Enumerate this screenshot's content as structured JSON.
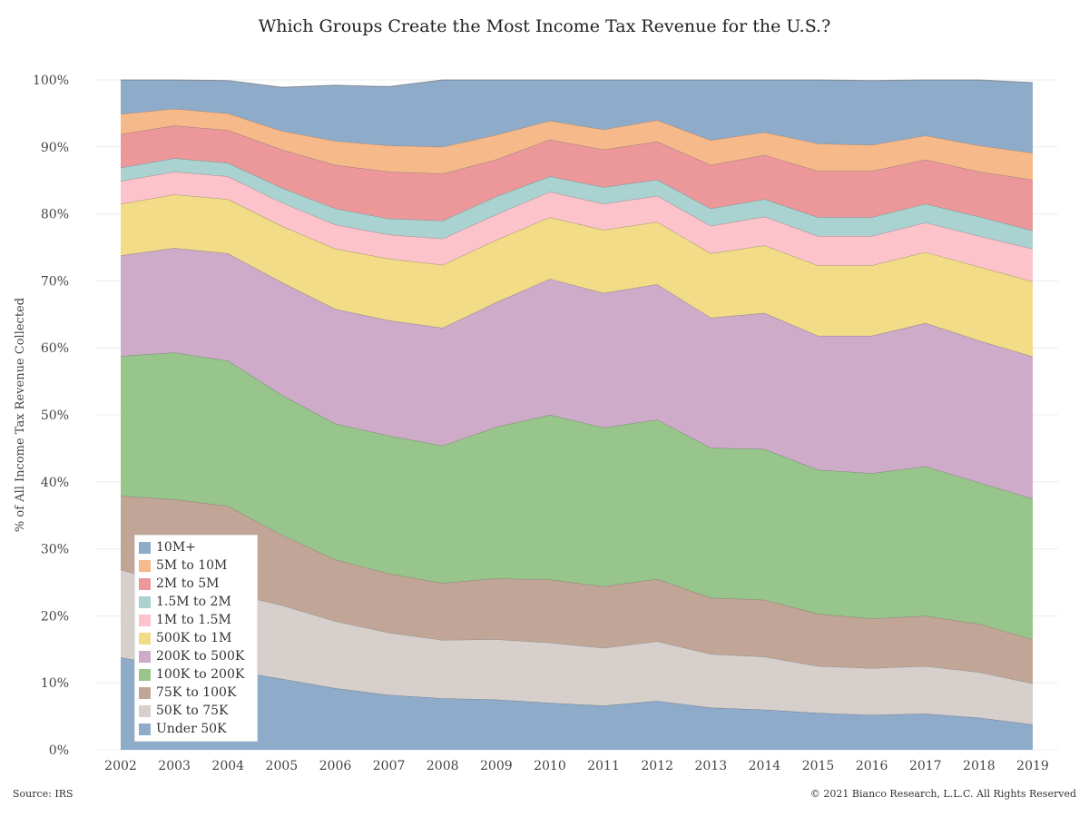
{
  "title": "Which Groups Create the Most Income Tax Revenue for the U.S.?",
  "source": "Source: IRS",
  "copyright": "© 2021 Bianco Research, L.L.C. All Rights Reserved",
  "chart_data": {
    "type": "area",
    "stacked": true,
    "title": "Which Groups Create the Most Income Tax Revenue for the U.S.?",
    "xlabel": "",
    "ylabel": "% of All Income Tax Revenue Collected",
    "x": [
      "2002",
      "2003",
      "2004",
      "2005",
      "2006",
      "2007",
      "2008",
      "2009",
      "2010",
      "2011",
      "2012",
      "2013",
      "2014",
      "2015",
      "2016",
      "2017",
      "2018",
      "2019"
    ],
    "ylim": [
      0,
      100
    ],
    "yticks": [
      "0%",
      "10%",
      "20%",
      "30%",
      "40%",
      "50%",
      "60%",
      "70%",
      "80%",
      "90%",
      "100%"
    ],
    "grid": true,
    "legend_position": "bottom-left",
    "series": [
      {
        "name": "Under 50K",
        "color": "#8fabca",
        "values": [
          13.8,
          12.4,
          11.9,
          10.6,
          9.2,
          8.2,
          7.7,
          7.5,
          7.0,
          6.6,
          7.3,
          6.3,
          6.0,
          5.5,
          5.2,
          5.4,
          4.8,
          3.8
        ]
      },
      {
        "name": "50K to 75K",
        "color": "#d6cfcc",
        "values": [
          13.1,
          12.3,
          11.6,
          11.0,
          10.0,
          9.3,
          8.7,
          9.0,
          9.0,
          8.6,
          8.9,
          8.0,
          7.9,
          7.0,
          7.0,
          7.1,
          6.8,
          6.1
        ]
      },
      {
        "name": "75K to 100K",
        "color": "#c1a697",
        "values": [
          11.0,
          12.7,
          12.9,
          10.5,
          9.2,
          8.8,
          8.5,
          9.1,
          9.4,
          9.2,
          9.3,
          8.4,
          8.5,
          7.8,
          7.4,
          7.5,
          7.2,
          6.6
        ]
      },
      {
        "name": "100K to 200K",
        "color": "#98c58b",
        "values": [
          20.9,
          21.9,
          21.7,
          20.9,
          20.3,
          20.6,
          20.5,
          22.6,
          24.6,
          23.7,
          23.8,
          22.4,
          22.5,
          21.5,
          21.7,
          22.3,
          21.1,
          21.0
        ]
      },
      {
        "name": "200K to 500K",
        "color": "#ceabc9",
        "values": [
          15.0,
          15.6,
          16.0,
          16.8,
          17.1,
          17.2,
          17.6,
          18.6,
          20.3,
          20.1,
          20.2,
          19.4,
          20.3,
          20.0,
          20.5,
          21.4,
          21.2,
          21.2
        ]
      },
      {
        "name": "500K to 1M",
        "color": "#f2dc87",
        "values": [
          7.7,
          8.0,
          8.1,
          8.4,
          9.0,
          9.2,
          9.4,
          9.3,
          9.2,
          9.4,
          9.3,
          9.6,
          10.1,
          10.5,
          10.5,
          10.6,
          11.0,
          11.2
        ]
      },
      {
        "name": "1M to 1.5M",
        "color": "#fdc3ca",
        "values": [
          3.4,
          3.4,
          3.4,
          3.5,
          3.6,
          3.6,
          3.9,
          3.8,
          3.8,
          3.9,
          3.9,
          4.1,
          4.3,
          4.4,
          4.4,
          4.4,
          4.6,
          4.9
        ]
      },
      {
        "name": "1.5M to 2M",
        "color": "#a9d2d0",
        "values": [
          2.0,
          2.0,
          2.0,
          2.2,
          2.4,
          2.4,
          2.7,
          2.7,
          2.3,
          2.5,
          2.4,
          2.6,
          2.6,
          2.8,
          2.8,
          2.8,
          2.9,
          2.7
        ]
      },
      {
        "name": "2M to 5M",
        "color": "#ec989a",
        "values": [
          5.0,
          4.9,
          4.9,
          5.7,
          6.5,
          7.0,
          7.0,
          5.5,
          5.5,
          5.6,
          5.7,
          6.5,
          6.6,
          6.9,
          6.9,
          6.6,
          6.7,
          7.6
        ]
      },
      {
        "name": "5M to 10M",
        "color": "#f6b98a",
        "values": [
          3.0,
          2.5,
          2.5,
          2.8,
          3.6,
          3.9,
          4.0,
          3.7,
          2.8,
          3.0,
          3.2,
          3.7,
          3.4,
          4.1,
          3.9,
          3.6,
          3.9,
          4.0
        ]
      },
      {
        "name": "10M+",
        "color": "#8fabca",
        "values": [
          5.1,
          4.3,
          4.9,
          6.5,
          8.3,
          8.8,
          10.0,
          8.2,
          6.1,
          7.4,
          6.0,
          9.0,
          7.8,
          9.5,
          9.6,
          8.3,
          9.8,
          10.5
        ]
      }
    ]
  }
}
